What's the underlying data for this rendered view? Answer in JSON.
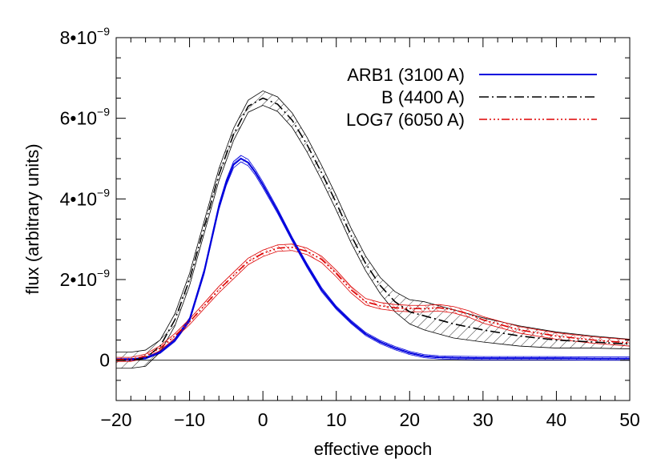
{
  "chart_data": {
    "type": "line",
    "title": "",
    "xlabel": "effective epoch",
    "ylabel": "flux (arbitrary units)",
    "xlim": [
      -20,
      50
    ],
    "ylim": [
      -1e-09,
      8e-09
    ],
    "x_ticks": [
      -20,
      -10,
      0,
      10,
      20,
      30,
      40,
      50
    ],
    "x_tick_labels": [
      "−20",
      "−10",
      "0",
      "10",
      "20",
      "30",
      "40",
      "50"
    ],
    "y_ticks": [
      {
        "value": 0,
        "base": "0",
        "exp": ""
      },
      {
        "value": 2e-09,
        "base": "2•10",
        "exp": "−9"
      },
      {
        "value": 4e-09,
        "base": "4•10",
        "exp": "−9"
      },
      {
        "value": 6e-09,
        "base": "6•10",
        "exp": "−9"
      },
      {
        "value": 8e-09,
        "base": "8•10",
        "exp": "−9"
      }
    ],
    "legend_position": "top-right",
    "series": [
      {
        "name": "ARB1 (3100 A)",
        "color": "#0000dd",
        "dash": "solid",
        "x": [
          -20,
          -18,
          -16,
          -14,
          -12,
          -10,
          -8,
          -6,
          -5,
          -4,
          -3,
          -2,
          -1,
          0,
          2,
          4,
          6,
          8,
          10,
          12,
          14,
          16,
          18,
          20,
          22,
          24,
          26,
          30,
          35,
          40,
          45,
          50
        ],
        "y": [
          2e-11,
          2e-11,
          5e-11,
          2e-10,
          5e-10,
          1e-09,
          2.2e-09,
          3.8e-09,
          4.4e-09,
          4.85e-09,
          5e-09,
          4.9e-09,
          4.65e-09,
          4.35e-09,
          3.7e-09,
          3e-09,
          2.35e-09,
          1.75e-09,
          1.3e-09,
          9.5e-10,
          6.5e-10,
          4.5e-10,
          3e-10,
          1.8e-10,
          1e-10,
          7e-11,
          6e-11,
          5e-11,
          5e-11,
          5e-11,
          4e-11,
          4e-11
        ],
        "band": [
          2e-11,
          2e-11,
          2e-11,
          3e-11,
          4e-11,
          5e-11,
          6e-11,
          7e-11,
          7e-11,
          8e-11,
          8e-11,
          8e-11,
          7e-11,
          7e-11,
          6e-11,
          5e-11,
          5e-11,
          5e-11,
          4e-11,
          4e-11,
          4e-11,
          4e-11,
          4e-11,
          4e-11,
          4e-11,
          4e-11,
          4e-11,
          4e-11,
          4e-11,
          4e-11,
          4e-11,
          4e-11
        ]
      },
      {
        "name": "B (4400 A)",
        "color": "#000000",
        "dash": "dashdot",
        "x": [
          -20,
          -18,
          -16,
          -14,
          -12,
          -10,
          -8,
          -6,
          -4,
          -2,
          0,
          2,
          4,
          6,
          8,
          10,
          12,
          14,
          16,
          18,
          20,
          22,
          24,
          26,
          30,
          35,
          40,
          45,
          50
        ],
        "y": [
          0.0,
          0.0,
          5e-11,
          3.5e-10,
          1e-09,
          2e-09,
          3.3e-09,
          4.6e-09,
          5.6e-09,
          6.3e-09,
          6.5e-09,
          6.35e-09,
          5.95e-09,
          5.35e-09,
          4.65e-09,
          3.9e-09,
          3.1e-09,
          2.4e-09,
          1.85e-09,
          1.45e-09,
          1.2e-09,
          1.1e-09,
          1e-09,
          9e-10,
          7.5e-10,
          6e-10,
          5e-10,
          4.5e-10,
          4e-10
        ],
        "band": [
          2e-10,
          2e-10,
          2e-10,
          1.5e-10,
          1.5e-10,
          1.5e-10,
          1.5e-10,
          1.5e-10,
          1.5e-10,
          1.5e-10,
          1.8e-10,
          1.8e-10,
          1.8e-10,
          1.8e-10,
          1.8e-10,
          1.8e-10,
          1.8e-10,
          1.8e-10,
          2e-10,
          2.5e-10,
          3e-10,
          3.5e-10,
          3.5e-10,
          3.5e-10,
          3e-10,
          2.5e-10,
          2e-10,
          1.5e-10,
          1.2e-10
        ]
      },
      {
        "name": "LOG7 (6050 A)",
        "color": "#dd0000",
        "dash": "dashdotdotdot",
        "x": [
          -20,
          -18,
          -16,
          -14,
          -12,
          -10,
          -8,
          -6,
          -4,
          -2,
          0,
          2,
          4,
          6,
          8,
          10,
          12,
          14,
          16,
          18,
          20,
          22,
          24,
          26,
          28,
          30,
          35,
          40,
          45,
          50
        ],
        "y": [
          2e-11,
          2e-11,
          1e-10,
          3e-10,
          6e-10,
          9.5e-10,
          1.35e-09,
          1.75e-09,
          2.1e-09,
          2.45e-09,
          2.65e-09,
          2.78e-09,
          2.8e-09,
          2.7e-09,
          2.5e-09,
          2.15e-09,
          1.75e-09,
          1.45e-09,
          1.35e-09,
          1.3e-09,
          1.28e-09,
          1.28e-09,
          1.3e-09,
          1.25e-09,
          1.15e-09,
          1e-09,
          7.5e-10,
          6e-10,
          5e-10,
          4.3e-10
        ],
        "band": [
          5e-11,
          5e-11,
          5e-11,
          6e-11,
          6e-11,
          7e-11,
          7e-11,
          8e-11,
          8e-11,
          8e-11,
          8e-11,
          8e-11,
          8e-11,
          8e-11,
          8e-11,
          8e-11,
          8e-11,
          8e-11,
          8e-11,
          8e-11,
          8e-11,
          8e-11,
          8e-11,
          8e-11,
          8e-11,
          8e-11,
          8e-11,
          8e-11,
          8e-11,
          8e-11
        ]
      }
    ]
  }
}
